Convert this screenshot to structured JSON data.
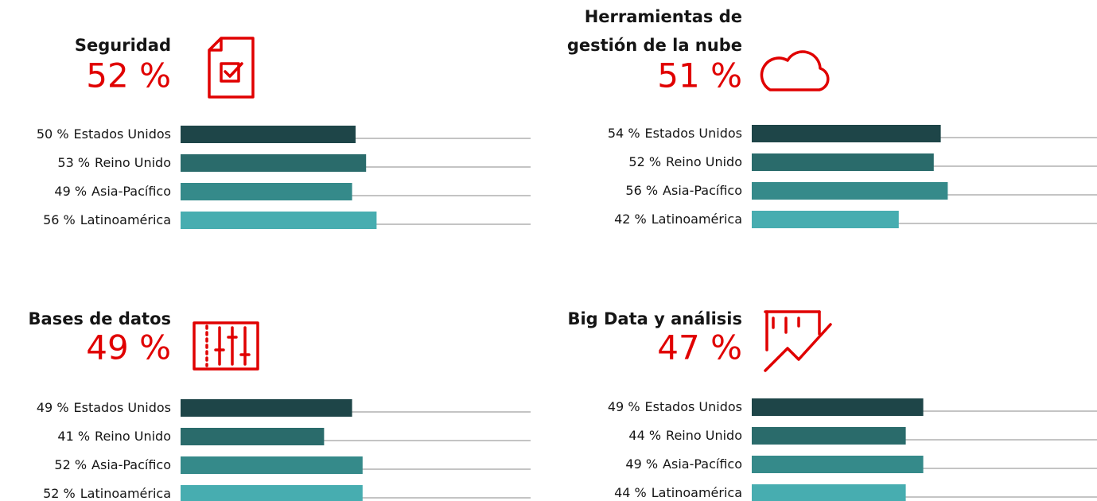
{
  "chart_data": [
    {
      "type": "bar",
      "title": "Seguridad",
      "total_label": "52 %",
      "categories": [
        "Estados Unidos",
        "Reino Unido",
        "Asia-Pacífico",
        "Latinoamérica"
      ],
      "values": [
        50,
        53,
        49,
        56
      ],
      "value_labels": [
        "50 %",
        "53 %",
        "49 %",
        "56 %"
      ],
      "colors": [
        "#1e4548",
        "#2a6b6b",
        "#358a8a",
        "#47adb0"
      ],
      "xlim": [
        0,
        100
      ]
    },
    {
      "type": "bar",
      "title": [
        "Herramientas de",
        "gestión de la nube"
      ],
      "total_label": "51 %",
      "categories": [
        "Estados Unidos",
        "Reino Unido",
        "Asia-Pacífico",
        "Latinoamérica"
      ],
      "values": [
        54,
        52,
        56,
        42
      ],
      "value_labels": [
        "54 %",
        "52 %",
        "56 %",
        "42 %"
      ],
      "colors": [
        "#1e4548",
        "#2a6b6b",
        "#358a8a",
        "#47adb0"
      ],
      "xlim": [
        0,
        100
      ]
    },
    {
      "type": "bar",
      "title": "Bases de datos",
      "total_label": "49 %",
      "categories": [
        "Estados Unidos",
        "Reino Unido",
        "Asia-Pacífico",
        "Latinoamérica"
      ],
      "values": [
        49,
        41,
        52,
        52
      ],
      "value_labels": [
        "49 %",
        "41 %",
        "52 %",
        "52 %"
      ],
      "colors": [
        "#1e4548",
        "#2a6b6b",
        "#358a8a",
        "#47adb0"
      ],
      "xlim": [
        0,
        100
      ]
    },
    {
      "type": "bar",
      "title": "Big Data y análisis",
      "total_label": "47 %",
      "categories": [
        "Estados Unidos",
        "Reino Unido",
        "Asia-Pacífico",
        "Latinoamérica"
      ],
      "values": [
        49,
        44,
        49,
        44
      ],
      "value_labels": [
        "49 %",
        "44 %",
        "49 %",
        "44 %"
      ],
      "colors": [
        "#1e4548",
        "#2a6b6b",
        "#358a8a",
        "#47adb0"
      ],
      "xlim": [
        0,
        100
      ]
    }
  ]
}
